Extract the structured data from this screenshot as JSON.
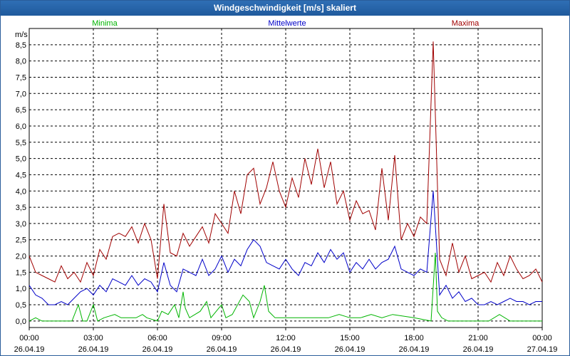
{
  "window": {
    "title": "Windgeschwindigkeit [m/s] skaliert"
  },
  "colors": {
    "minima": "#00b400",
    "mittel": "#0000c8",
    "maxima": "#a00000",
    "grid": "#000000",
    "title_bg": "#2463a8"
  },
  "chart_data": {
    "type": "line",
    "title": "Windgeschwindigkeit [m/s] skaliert",
    "ylabel": "m/s",
    "ylim": [
      -0.2,
      9.0
    ],
    "xlim": [
      0,
      24
    ],
    "y_ticks": [
      "0,0",
      "0,5",
      "1,0",
      "1,5",
      "2,0",
      "2,5",
      "3,0",
      "3,5",
      "4,0",
      "4,5",
      "5,0",
      "5,5",
      "6,0",
      "6,5",
      "7,0",
      "7,5",
      "8,0",
      "8,5"
    ],
    "x_ticks": [
      {
        "time": "00:00",
        "date": "26.04.19"
      },
      {
        "time": "03:00",
        "date": "26.04.19"
      },
      {
        "time": "06:00",
        "date": "26.04.19"
      },
      {
        "time": "09:00",
        "date": "26.04.19"
      },
      {
        "time": "12:00",
        "date": "26.04.19"
      },
      {
        "time": "15:00",
        "date": "26.04.19"
      },
      {
        "time": "18:00",
        "date": "26.04.19"
      },
      {
        "time": "21:00",
        "date": "26.04.19"
      },
      {
        "time": "00:00",
        "date": "27.04.19"
      }
    ],
    "legend": [
      "Minima",
      "Mittelwerte",
      "Maxima"
    ],
    "series": [
      {
        "name": "Minima",
        "color": "#00b400",
        "x": [
          0,
          0.3,
          0.6,
          1,
          1.5,
          2,
          2.3,
          2.5,
          2.7,
          3,
          3.2,
          3.5,
          4,
          4.3,
          4.5,
          5,
          5.3,
          5.5,
          6,
          6.2,
          6.5,
          6.8,
          7,
          7.2,
          7.3,
          7.5,
          8,
          8.3,
          8.5,
          9,
          9.2,
          9.5,
          10,
          10.3,
          10.5,
          10.8,
          11,
          11.2,
          11.5,
          12,
          13,
          14,
          14.5,
          15,
          15.5,
          16,
          16.5,
          17,
          18,
          18.8,
          19,
          19.1,
          19.3,
          19.6,
          20,
          21,
          21.5,
          22,
          22.5,
          23,
          24
        ],
        "y": [
          0,
          0.1,
          0,
          0,
          0,
          0,
          0.5,
          0,
          0,
          0.5,
          0,
          0.1,
          0.2,
          0.1,
          0.1,
          0.1,
          0.2,
          0.1,
          0,
          0.3,
          0.2,
          0.5,
          0.1,
          0.9,
          0.4,
          0.1,
          0.3,
          0.6,
          0.1,
          0.5,
          0.1,
          0.2,
          0.8,
          0.6,
          0.1,
          0.6,
          1.1,
          0.3,
          0.1,
          0.1,
          0.1,
          0.1,
          0.2,
          0.1,
          0.1,
          0.2,
          0.1,
          0.2,
          0.1,
          0,
          2.1,
          0.3,
          0.1,
          0,
          0,
          0,
          0,
          0.2,
          0,
          0,
          0
        ]
      },
      {
        "name": "Mittelwerte",
        "color": "#0000c8",
        "x": [
          0,
          0.3,
          0.6,
          0.9,
          1.2,
          1.5,
          1.8,
          2.1,
          2.4,
          2.7,
          3,
          3.3,
          3.6,
          3.9,
          4.2,
          4.5,
          4.8,
          5.1,
          5.4,
          5.7,
          6,
          6.3,
          6.6,
          6.9,
          7.2,
          7.5,
          7.8,
          8.1,
          8.4,
          8.7,
          9,
          9.3,
          9.6,
          9.9,
          10.2,
          10.5,
          10.8,
          11.1,
          11.4,
          11.7,
          12,
          12.3,
          12.6,
          12.9,
          13.2,
          13.5,
          13.8,
          14.1,
          14.4,
          14.7,
          15,
          15.3,
          15.6,
          15.9,
          16.2,
          16.5,
          16.8,
          17.1,
          17.4,
          17.7,
          18,
          18.3,
          18.6,
          18.9,
          19.2,
          19.5,
          19.8,
          20.1,
          20.4,
          20.7,
          21,
          21.3,
          21.6,
          21.9,
          22.2,
          22.5,
          22.8,
          23.1,
          23.4,
          23.7,
          24
        ],
        "y": [
          1.1,
          0.8,
          0.7,
          0.5,
          0.5,
          0.6,
          0.5,
          0.7,
          0.9,
          1.0,
          0.8,
          1.1,
          0.9,
          1.3,
          1.2,
          1.1,
          1.4,
          1.1,
          1.3,
          1.2,
          0.9,
          1.8,
          1.1,
          0.9,
          1.6,
          1.5,
          1.4,
          1.9,
          1.4,
          1.6,
          2.0,
          1.5,
          1.9,
          1.7,
          2.2,
          2.5,
          2.3,
          1.8,
          1.7,
          1.6,
          1.9,
          1.6,
          1.4,
          1.8,
          1.7,
          2.1,
          1.8,
          2.2,
          1.9,
          2.1,
          1.5,
          1.8,
          1.6,
          1.9,
          1.6,
          1.8,
          1.9,
          2.3,
          1.6,
          1.5,
          1.4,
          1.6,
          1.5,
          4.0,
          0.8,
          1.1,
          0.7,
          0.9,
          0.6,
          0.7,
          0.5,
          0.5,
          0.6,
          0.5,
          0.6,
          0.7,
          0.6,
          0.6,
          0.5,
          0.6,
          0.6
        ]
      },
      {
        "name": "Maxima",
        "color": "#a00000",
        "x": [
          0,
          0.3,
          0.6,
          0.9,
          1.2,
          1.5,
          1.8,
          2.1,
          2.4,
          2.7,
          3,
          3.3,
          3.6,
          3.9,
          4.2,
          4.5,
          4.8,
          5.1,
          5.4,
          5.7,
          6,
          6.3,
          6.6,
          6.9,
          7.2,
          7.5,
          7.8,
          8.1,
          8.4,
          8.7,
          9,
          9.3,
          9.6,
          9.9,
          10.2,
          10.5,
          10.8,
          11.1,
          11.4,
          11.7,
          12,
          12.3,
          12.6,
          12.9,
          13.2,
          13.5,
          13.8,
          14.1,
          14.4,
          14.7,
          15,
          15.3,
          15.6,
          15.9,
          16.2,
          16.5,
          16.8,
          17.1,
          17.4,
          17.7,
          18,
          18.3,
          18.6,
          18.9,
          19.2,
          19.5,
          19.8,
          20.1,
          20.4,
          20.7,
          21,
          21.3,
          21.6,
          21.9,
          22.2,
          22.5,
          22.8,
          23.1,
          23.4,
          23.7,
          24
        ],
        "y": [
          2.0,
          1.5,
          1.4,
          1.3,
          1.2,
          1.7,
          1.3,
          1.5,
          1.2,
          1.8,
          1.4,
          2.2,
          1.9,
          2.6,
          2.7,
          2.6,
          2.9,
          2.4,
          3.0,
          2.5,
          1.3,
          3.6,
          2.1,
          2.0,
          2.7,
          2.3,
          2.6,
          2.9,
          2.4,
          3.3,
          3.0,
          2.7,
          4.0,
          3.3,
          4.5,
          4.7,
          3.6,
          4.1,
          4.9,
          4.0,
          3.5,
          4.4,
          3.8,
          5.0,
          4.2,
          5.3,
          4.1,
          4.9,
          3.6,
          4.0,
          3.1,
          3.7,
          3.3,
          3.4,
          2.8,
          4.7,
          3.1,
          5.1,
          2.5,
          3.0,
          2.6,
          3.2,
          3.0,
          8.6,
          1.9,
          1.4,
          2.4,
          1.5,
          2.0,
          1.3,
          1.4,
          1.5,
          1.2,
          1.8,
          1.4,
          2.0,
          1.6,
          1.3,
          1.4,
          1.6,
          1.2
        ]
      }
    ]
  }
}
